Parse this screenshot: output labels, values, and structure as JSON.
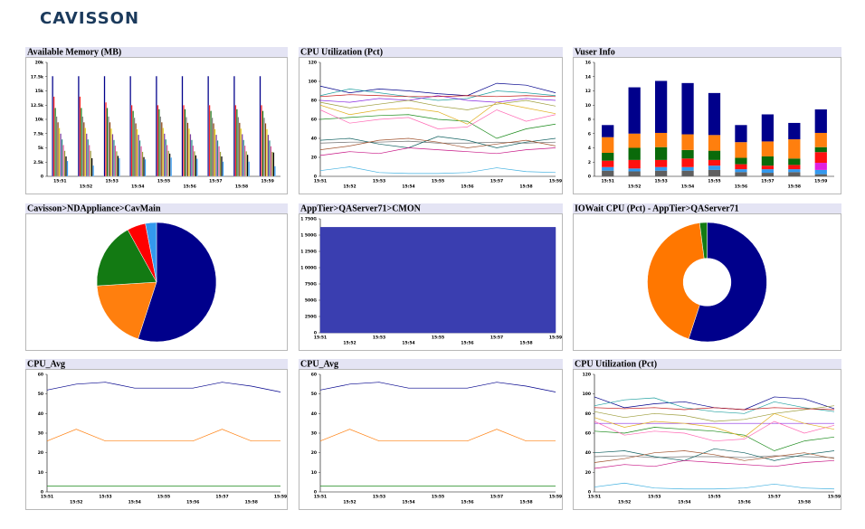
{
  "header": {
    "logo": "CAVISSON"
  },
  "chart_data": [
    {
      "type": "bar",
      "title": "Available Memory (MB)",
      "categories": [
        "15:51",
        "15:52",
        "15:53",
        "15:54",
        "15:55",
        "15:56",
        "15:57",
        "15:58",
        "15:59"
      ],
      "ylim": [
        0,
        20000
      ],
      "yticks": [
        0,
        {
          "value": 2500,
          "label": "2.5k"
        },
        {
          "value": 5000,
          "label": "5k"
        },
        {
          "value": 7500,
          "label": "7.5k"
        },
        {
          "value": 10000,
          "label": "10k"
        },
        {
          "value": 12500,
          "label": "12.5k"
        },
        {
          "value": 15000,
          "label": "15k"
        },
        {
          "value": 17500,
          "label": "17.5k"
        },
        {
          "value": 20000,
          "label": "20k"
        }
      ],
      "series": [
        {
          "color": "#00008b",
          "values": [
            17600,
            17600,
            17600,
            17600,
            17600,
            17600,
            17600,
            17600,
            17600
          ]
        },
        {
          "color": "#ff2020",
          "values": [
            14000,
            14000,
            13000,
            12500,
            12500,
            12500,
            12500,
            12500,
            12500
          ]
        },
        {
          "color": "#1a7a1a",
          "values": [
            12000,
            12000,
            12000,
            11500,
            11800,
            11800,
            11500,
            11800,
            11500
          ]
        },
        {
          "color": "#808080",
          "values": [
            10500,
            10500,
            10500,
            10300,
            10500,
            10400,
            10300,
            10400,
            10300
          ]
        },
        {
          "color": "#8b4513",
          "values": [
            9500,
            9500,
            9500,
            9300,
            9500,
            9400,
            9300,
            9400,
            9300
          ]
        },
        {
          "color": "#e6d21e",
          "values": [
            8500,
            8500,
            8400,
            8300,
            8500,
            8400,
            8300,
            8400,
            8300
          ]
        },
        {
          "color": "#7b3fa0",
          "values": [
            7500,
            7500,
            7400,
            7300,
            7500,
            7400,
            7300,
            7400,
            7300
          ]
        },
        {
          "color": "#2a8a8a",
          "values": [
            6500,
            6500,
            6400,
            6300,
            6500,
            6400,
            6300,
            6400,
            6300
          ]
        },
        {
          "color": "#e05a9a",
          "values": [
            5500,
            5500,
            5400,
            5300,
            5500,
            5400,
            5300,
            5400,
            5300
          ]
        },
        {
          "color": "#9c9c3a",
          "values": [
            4500,
            4500,
            4400,
            4300,
            4500,
            4400,
            4300,
            4400,
            4300
          ]
        },
        {
          "color": "#000000",
          "values": [
            3500,
            3200,
            3600,
            3400,
            4000,
            3700,
            3500,
            3800,
            4200
          ]
        },
        {
          "color": "#3399ee",
          "values": [
            2700,
            1900,
            3200,
            3000,
            3300,
            3100,
            2600,
            2600,
            1800
          ]
        }
      ]
    },
    {
      "type": "line",
      "title": "CPU Utilization (Pct)",
      "categories": [
        "15:51",
        "15:52",
        "15:53",
        "15:54",
        "15:55",
        "15:56",
        "15:57",
        "15:58",
        "15:59"
      ],
      "ylim": [
        0,
        120
      ],
      "yticks": [
        0,
        20,
        40,
        60,
        80,
        100,
        120
      ],
      "series": [
        {
          "color": "#00008b",
          "values": [
            95,
            88,
            92,
            90,
            87,
            85,
            98,
            96,
            88
          ]
        },
        {
          "color": "#20a0a0",
          "values": [
            85,
            92,
            88,
            84,
            80,
            82,
            90,
            88,
            85
          ]
        },
        {
          "color": "#8a2be2",
          "values": [
            80,
            78,
            82,
            80,
            85,
            80,
            78,
            82,
            80
          ]
        },
        {
          "color": "#9c9c3a",
          "values": [
            78,
            72,
            76,
            80,
            74,
            70,
            76,
            80,
            74
          ]
        },
        {
          "color": "#c01010",
          "values": [
            84,
            86,
            85,
            84,
            84,
            85,
            84,
            85,
            84
          ]
        },
        {
          "color": "#1a8a1a",
          "values": [
            60,
            62,
            64,
            65,
            60,
            58,
            40,
            50,
            55
          ]
        },
        {
          "color": "#ff69b4",
          "values": [
            70,
            56,
            60,
            62,
            50,
            52,
            70,
            58,
            65
          ]
        },
        {
          "color": "#e0b020",
          "values": [
            75,
            65,
            70,
            72,
            68,
            55,
            78,
            72,
            66
          ]
        },
        {
          "color": "#707070",
          "values": [
            35,
            36,
            36,
            37,
            35,
            35,
            36,
            35,
            36
          ]
        },
        {
          "color": "#106060",
          "values": [
            38,
            40,
            34,
            30,
            42,
            38,
            30,
            36,
            40
          ]
        },
        {
          "color": "#a0522d",
          "values": [
            28,
            32,
            38,
            40,
            36,
            30,
            34,
            38,
            32
          ]
        },
        {
          "color": "#c71585",
          "values": [
            22,
            26,
            24,
            30,
            28,
            26,
            24,
            28,
            30
          ]
        },
        {
          "color": "#40b0e0",
          "values": [
            6,
            10,
            4,
            3,
            3,
            4,
            9,
            5,
            4
          ]
        }
      ]
    },
    {
      "type": "bar",
      "stacked": true,
      "title": "Vuser Info",
      "categories": [
        "15:51",
        "15:52",
        "15:53",
        "15:54",
        "15:55",
        "15:56",
        "15:57",
        "15:58",
        "15:59"
      ],
      "ylim": [
        0,
        16
      ],
      "yticks": [
        0,
        2,
        4,
        6,
        8,
        10,
        12,
        14,
        16
      ],
      "series": [
        {
          "color": "#606060",
          "values": [
            0.8,
            0.7,
            0.8,
            0.8,
            0.9,
            0.6,
            0.5,
            0.6,
            0.3
          ]
        },
        {
          "color": "#3399ee",
          "values": [
            0.5,
            0.4,
            0.5,
            0.5,
            0.6,
            0.4,
            0.5,
            0.4,
            0.6
          ]
        },
        {
          "color": "#e020e0",
          "values": [
            0,
            0,
            0,
            0,
            0,
            0,
            0,
            0,
            1
          ]
        },
        {
          "color": "#ff1010",
          "values": [
            0.9,
            1.2,
            1,
            1.2,
            0.8,
            0.7,
            0.5,
            0.6,
            1.5
          ]
        },
        {
          "color": "#0a6a0a",
          "values": [
            1.1,
            1.7,
            1.8,
            1.2,
            1.3,
            0.9,
            1.3,
            0.9,
            0.7
          ]
        },
        {
          "color": "#ff7f0e",
          "values": [
            2.2,
            2,
            2,
            2.2,
            2.2,
            2.2,
            2.1,
            2.7,
            2
          ]
        },
        {
          "color": "#00008b",
          "values": [
            1.7,
            6.5,
            7.3,
            7.2,
            5.9,
            2.4,
            3.8,
            2.3,
            3.3
          ]
        }
      ]
    },
    {
      "type": "pie",
      "title": "Cavisson>NDAppliance>CavMain",
      "values": [
        55,
        19,
        18,
        5,
        3
      ],
      "colors": [
        "#00008b",
        "#ff7f0e",
        "#137a13",
        "#ff0000",
        "#3399ee"
      ]
    },
    {
      "type": "area",
      "title": "AppTier>QAServer71>CMON",
      "categories": [
        "15:51",
        "15:52",
        "15:53",
        "15:54",
        "15:55",
        "15:56",
        "15:57",
        "15:58",
        "15:59"
      ],
      "ylim": [
        0,
        1750
      ],
      "yticks": [
        0,
        {
          "value": 250,
          "label": "250G"
        },
        {
          "value": 500,
          "label": "500G"
        },
        {
          "value": 750,
          "label": "750G"
        },
        {
          "value": 1000,
          "label": "1 000G"
        },
        {
          "value": 1250,
          "label": "1 250G"
        },
        {
          "value": 1500,
          "label": "1 500G"
        },
        {
          "value": 1750,
          "label": "1 750G"
        }
      ],
      "series": [
        {
          "color": "#3a3eb0",
          "values": [
            1620,
            1620,
            1620,
            1620,
            1620,
            1620,
            1620,
            1620,
            1620
          ]
        }
      ]
    },
    {
      "type": "donut",
      "title": "IOWait CPU (Pct) - AppTier>QAServer71",
      "values": [
        55,
        43,
        2
      ],
      "colors": [
        "#00008b",
        "#ff7700",
        "#137a13"
      ]
    },
    {
      "type": "line",
      "title": "CPU_Avg",
      "categories": [
        "15:51",
        "15:52",
        "15:53",
        "15:54",
        "15:55",
        "15:56",
        "15:57",
        "15:58",
        "15:59"
      ],
      "ylim": [
        0,
        60
      ],
      "yticks": [
        0,
        10,
        20,
        30,
        40,
        50,
        60
      ],
      "series": [
        {
          "color": "#00008b",
          "values": [
            52,
            55,
            56,
            53,
            53,
            53,
            56,
            54,
            51
          ]
        },
        {
          "color": "#ff7f0e",
          "values": [
            26,
            32,
            26,
            26,
            26,
            26,
            32,
            26,
            26
          ]
        },
        {
          "color": "#1a8a1a",
          "values": [
            3,
            3,
            3,
            3,
            3,
            3,
            3,
            3,
            3
          ]
        }
      ]
    },
    {
      "type": "line",
      "title": "CPU_Avg",
      "categories": [
        "15:51",
        "15:52",
        "15:53",
        "15:54",
        "15:55",
        "15:56",
        "15:57",
        "15:58",
        "15:59"
      ],
      "ylim": [
        0,
        60
      ],
      "yticks": [
        0,
        10,
        20,
        30,
        40,
        50,
        60
      ],
      "series": [
        {
          "color": "#00008b",
          "values": [
            52,
            55,
            56,
            53,
            53,
            53,
            56,
            54,
            51
          ]
        },
        {
          "color": "#ff7f0e",
          "values": [
            26,
            32,
            26,
            26,
            26,
            26,
            32,
            26,
            26
          ]
        },
        {
          "color": "#1a8a1a",
          "values": [
            3,
            3,
            3,
            3,
            3,
            3,
            3,
            3,
            3
          ]
        }
      ]
    },
    {
      "type": "line",
      "title": "CPU Utilization (Pct)",
      "categories": [
        "15:51",
        "15:52",
        "15:53",
        "15:54",
        "15:55",
        "15:56",
        "15:57",
        "15:58",
        "15:59"
      ],
      "ylim": [
        0,
        120
      ],
      "yticks": [
        0,
        20,
        40,
        60,
        80,
        100,
        120
      ],
      "series": [
        {
          "color": "#00008b",
          "values": [
            97,
            86,
            90,
            92,
            86,
            84,
            97,
            95,
            85
          ]
        },
        {
          "color": "#20a0a0",
          "values": [
            88,
            94,
            96,
            86,
            82,
            80,
            92,
            86,
            82
          ]
        },
        {
          "color": "#8a2be2",
          "values": [
            70,
            70,
            70,
            70,
            70,
            70,
            70,
            70,
            70
          ]
        },
        {
          "color": "#9c9c3a",
          "values": [
            82,
            76,
            80,
            78,
            72,
            74,
            80,
            84,
            88
          ]
        },
        {
          "color": "#c01010",
          "values": [
            86,
            85,
            86,
            84,
            86,
            84,
            86,
            85,
            84
          ]
        },
        {
          "color": "#1a8a1a",
          "values": [
            62,
            60,
            66,
            64,
            62,
            58,
            42,
            52,
            56
          ]
        },
        {
          "color": "#ff69b4",
          "values": [
            72,
            58,
            62,
            60,
            52,
            54,
            72,
            60,
            68
          ]
        },
        {
          "color": "#e0b020",
          "values": [
            76,
            66,
            72,
            70,
            66,
            56,
            80,
            70,
            64
          ]
        },
        {
          "color": "#707070",
          "values": [
            36,
            37,
            35,
            36,
            36,
            35,
            37,
            36,
            35
          ]
        },
        {
          "color": "#106060",
          "values": [
            40,
            42,
            36,
            32,
            44,
            40,
            32,
            38,
            42
          ]
        },
        {
          "color": "#a0522d",
          "values": [
            30,
            34,
            40,
            42,
            38,
            32,
            36,
            40,
            34
          ]
        },
        {
          "color": "#c71585",
          "values": [
            24,
            28,
            26,
            32,
            30,
            28,
            26,
            30,
            32
          ]
        },
        {
          "color": "#40b0e0",
          "values": [
            5,
            9,
            4,
            3,
            3,
            4,
            8,
            4,
            3
          ]
        }
      ]
    }
  ]
}
